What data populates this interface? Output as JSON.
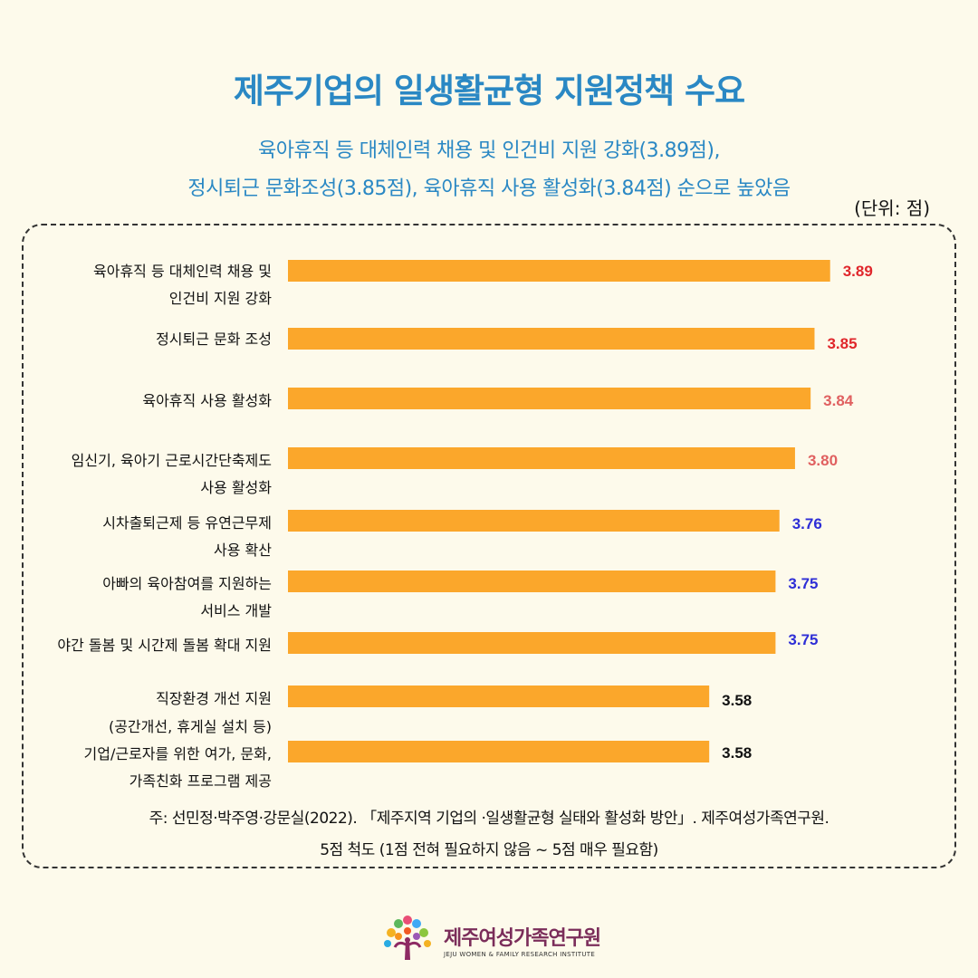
{
  "header": {
    "title": "제주기업의 일생활균형 지원정책 수요",
    "subtitle_line1": "육아휴직 등 대체인력 채용 및 인건비 지원 강화(3.89점),",
    "subtitle_line2": "정시퇴근 문화조성(3.85점), 육아휴직 사용 활성화(3.84점) 순으로 높았음",
    "unit": "(단위: 점)"
  },
  "chart_data": {
    "type": "bar",
    "orientation": "horizontal",
    "xlim": [
      2.5,
      4.0
    ],
    "bar_color": "#fba72b",
    "categories": [
      [
        "육아휴직 등 대체인력 채용 및",
        "인건비 지원 강화"
      ],
      [
        "정시퇴근 문화 조성"
      ],
      [
        "육아휴직 사용 활성화"
      ],
      [
        "임신기, 육아기 근로시간단축제도",
        "사용 활성화"
      ],
      [
        "시차출퇴근제 등 유연근무제",
        "사용 확산"
      ],
      [
        "아빠의 육아참여를 지원하는",
        "서비스 개발"
      ],
      [
        "야간 돌봄 및 시간제 돌봄 확대 지원"
      ],
      [
        "직장환경 개선 지원",
        "(공간개선, 휴게실 설치 등)"
      ],
      [
        "기업/근로자를 위한 여가, 문화,",
        "가족친화 프로그램 제공"
      ]
    ],
    "values": [
      3.89,
      3.85,
      3.84,
      3.8,
      3.76,
      3.75,
      3.75,
      3.58,
      3.58
    ],
    "value_labels": [
      "3.89",
      "3.85",
      "3.84",
      "3.80",
      "3.76",
      "3.75",
      "3.75",
      "3.58",
      "3.58"
    ],
    "label_colors": [
      "#e0262b",
      "#e0262b",
      "#e06060",
      "#e06060",
      "#2e2ed6",
      "#2e2ed6",
      "#2e2ed6",
      "#111111",
      "#111111"
    ],
    "grid": false,
    "legend": "none"
  },
  "footer": {
    "note_line1": "주: 선민정·박주영·강문실(2022). 「제주지역 기업의 ·일생활균형 실태와 활성화 방안」. 제주여성가족연구원.",
    "note_line2": "5점 척도 (1점 전혀 필요하지 않음 ~ 5점 매우 필요함)"
  },
  "logo": {
    "name": "제주여성가족연구원",
    "english": "JEJU WOMEN & FAMILY RESEARCH INSTITUTE",
    "icon": "tree-logo-icon"
  }
}
